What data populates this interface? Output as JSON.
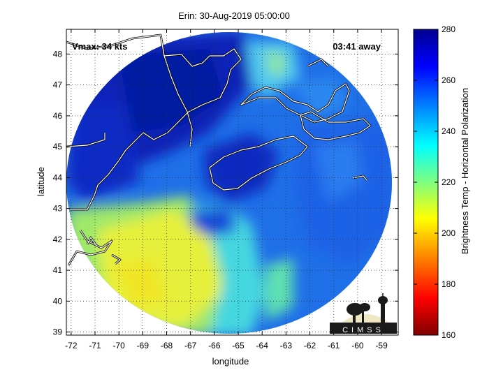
{
  "title": "Erin: 30-Aug-2019 05:00:00",
  "xlabel": "longitude",
  "ylabel": "latitude",
  "annotations": {
    "vmax": "Vmax: 34 kts",
    "time_away": "03:41 away"
  },
  "logo_text": "CIMSS",
  "colorbar": {
    "label": "Brightness Temp - Horizontal Polarization",
    "min": 160,
    "max": 280,
    "ticks": [
      "160",
      "180",
      "200",
      "220",
      "240",
      "260",
      "280"
    ],
    "colors": [
      "#7f0000",
      "#ff0000",
      "#ff8000",
      "#ffff00",
      "#80ff80",
      "#00ffff",
      "#0080ff",
      "#0000ff",
      "#00008f"
    ]
  },
  "map": {
    "lon_range": [
      -72.2,
      -58.3
    ],
    "lat_range": [
      38.9,
      48.8
    ],
    "lon_ticks": [
      "-72",
      "-71",
      "-70",
      "-69",
      "-68",
      "-67",
      "-66",
      "-65",
      "-64",
      "-63",
      "-62",
      "-61",
      "-60",
      "-59"
    ],
    "lat_ticks": [
      "39",
      "40",
      "41",
      "42",
      "43",
      "44",
      "45",
      "46",
      "47",
      "48"
    ],
    "grid": true
  }
}
